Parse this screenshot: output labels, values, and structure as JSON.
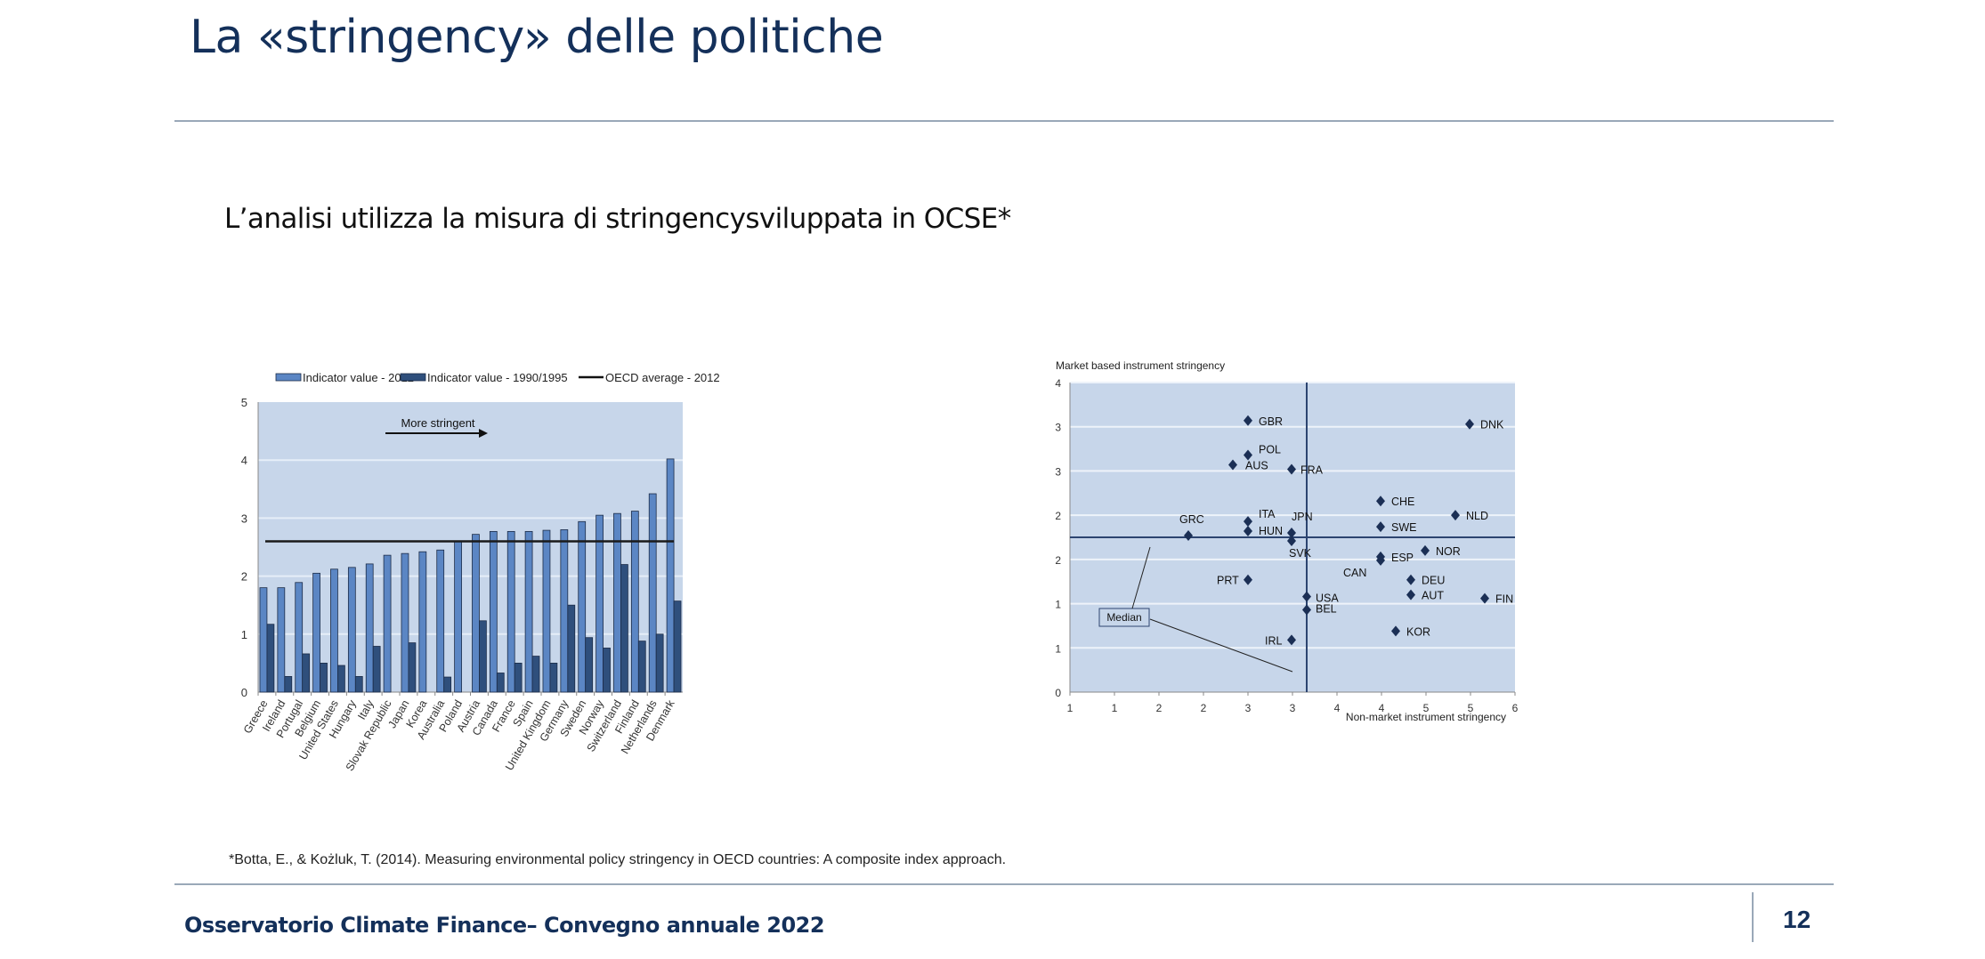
{
  "header": {
    "title": "La «stringency» delle politiche"
  },
  "subtitle": "L’analisi utilizza la misura di stringencysviluppata in OCSE*",
  "footnote": "*Botta, E., &   Kożluk, T. (2014). Measuring environmental policy stringency in OECD countries: A composite index approach.",
  "footer": {
    "text": "Osservatorio Climate Finance– Convegno annuale 2022",
    "page_number": "12"
  },
  "colors": {
    "bar2012": "#5b86c4",
    "bar1990": "#2f4f7c",
    "plot_bg": "#c7d6ea",
    "marker": "#1b2f55",
    "title": "#14305a"
  },
  "chart_data": [
    {
      "type": "bar",
      "title": "",
      "legend": [
        "Indicator value - 2012",
        "Indicator value - 1990/1995",
        "OECD average - 2012"
      ],
      "legend_position": "top",
      "annotation": "More stringent",
      "categories": [
        "Greece",
        "Ireland",
        "Portugal",
        "Belgium",
        "United States",
        "Hungary",
        "Italy",
        "Slovak Republic",
        "Japan",
        "Korea",
        "Australia",
        "Poland",
        "Austria",
        "Canada",
        "France",
        "Spain",
        "United Kingdom",
        "Germany",
        "Sweden",
        "Norway",
        "Switzerland",
        "Finland",
        "Netherlands",
        "Denmark"
      ],
      "series": [
        {
          "name": "Indicator value - 2012",
          "values": [
            1.8,
            1.8,
            1.89,
            2.05,
            2.12,
            2.15,
            2.21,
            2.36,
            2.39,
            2.42,
            2.45,
            2.6,
            2.72,
            2.77,
            2.77,
            2.77,
            2.79,
            2.8,
            2.94,
            3.05,
            3.08,
            3.12,
            3.42,
            4.02
          ]
        },
        {
          "name": "Indicator value - 1990/1995",
          "values": [
            1.17,
            0.27,
            0.66,
            0.5,
            0.46,
            0.27,
            0.79,
            0,
            0.85,
            0,
            0.26,
            0,
            1.23,
            0.33,
            0.5,
            0.62,
            0.5,
            1.5,
            0.94,
            0.76,
            2.2,
            0.88,
            1.0,
            1.57
          ]
        }
      ],
      "oecd_average": 2.6,
      "ylim": [
        0,
        5
      ],
      "yticks": [
        "0",
        "1",
        "2",
        "3",
        "4",
        "5"
      ],
      "grid": true
    },
    {
      "type": "scatter",
      "ylabel": "Market based instrument stringency",
      "xlabel": "Non-market instrument stringency",
      "xlim": [
        1,
        6
      ],
      "ylim": [
        0,
        3.5
      ],
      "xticks": [
        "1",
        "1",
        "2",
        "2",
        "3",
        "3",
        "4",
        "4",
        "5",
        "5",
        "6"
      ],
      "yticks": [
        "0",
        "1",
        "1",
        "2",
        "2",
        "3",
        "3",
        "4"
      ],
      "median": {
        "x": 3.66,
        "y": 1.75,
        "label": "Median"
      },
      "points": [
        {
          "label": "GBR",
          "x": 3.0,
          "y": 3.07
        },
        {
          "label": "DNK",
          "x": 5.49,
          "y": 3.03
        },
        {
          "label": "POL",
          "x": 3.0,
          "y": 2.68
        },
        {
          "label": "AUS",
          "x": 2.83,
          "y": 2.57
        },
        {
          "label": "FRA",
          "x": 3.49,
          "y": 2.52
        },
        {
          "label": "CHE",
          "x": 4.49,
          "y": 2.16
        },
        {
          "label": "NLD",
          "x": 5.33,
          "y": 2.0
        },
        {
          "label": "ITA",
          "x": 3.0,
          "y": 1.93
        },
        {
          "label": "HUN",
          "x": 3.0,
          "y": 1.82
        },
        {
          "label": "GRC",
          "x": 2.33,
          "y": 1.77
        },
        {
          "label": "JPN",
          "x": 3.49,
          "y": 1.8
        },
        {
          "label": "SVK",
          "x": 3.49,
          "y": 1.71
        },
        {
          "label": "SWE",
          "x": 4.49,
          "y": 1.87
        },
        {
          "label": "ESP",
          "x": 4.49,
          "y": 1.53
        },
        {
          "label": "CAN",
          "x": 4.49,
          "y": 1.49
        },
        {
          "label": "NOR",
          "x": 4.99,
          "y": 1.6
        },
        {
          "label": "DEU",
          "x": 4.83,
          "y": 1.27
        },
        {
          "label": "AUT",
          "x": 4.83,
          "y": 1.1
        },
        {
          "label": "FIN",
          "x": 5.66,
          "y": 1.06
        },
        {
          "label": "USA",
          "x": 3.66,
          "y": 1.08
        },
        {
          "label": "BEL",
          "x": 3.66,
          "y": 0.93
        },
        {
          "label": "PRT",
          "x": 3.0,
          "y": 1.27
        },
        {
          "label": "KOR",
          "x": 4.66,
          "y": 0.69
        },
        {
          "label": "IRL",
          "x": 3.49,
          "y": 0.59
        }
      ]
    }
  ]
}
